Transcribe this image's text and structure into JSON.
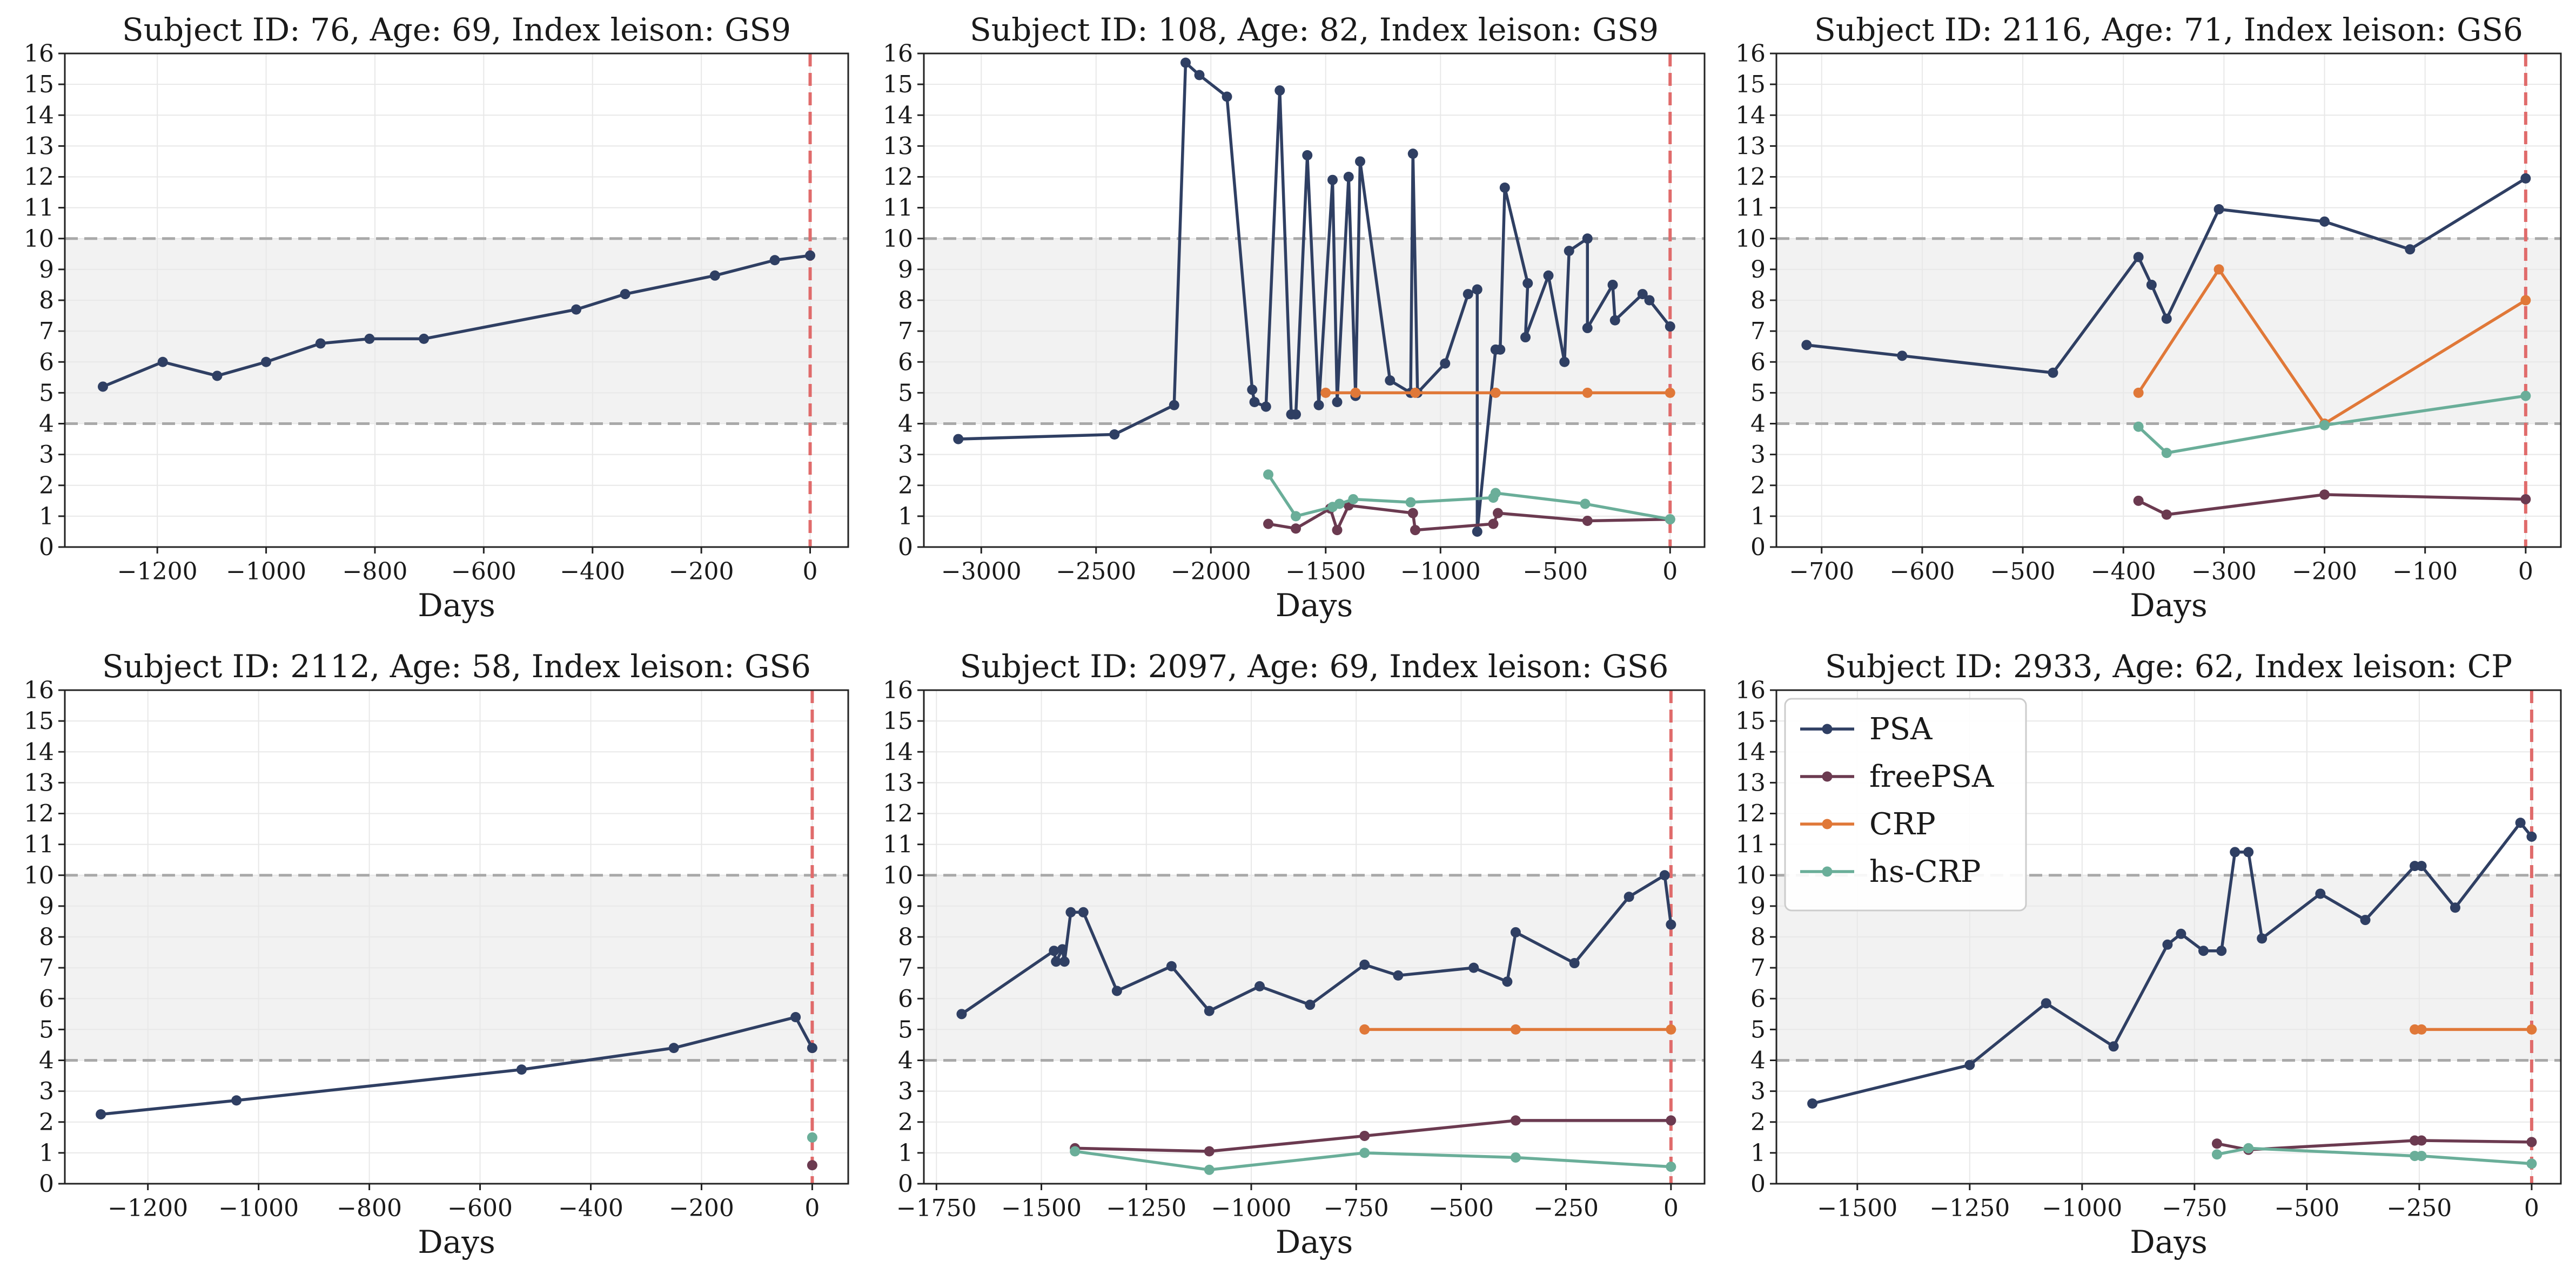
{
  "colors": {
    "PSA": "#2f3f63",
    "freePSA": "#6b3a50",
    "CRP": "#e07838",
    "hs-CRP": "#6aae99",
    "band": "#f2f2f2",
    "threshold": "#a9a9a9",
    "index": "#e06b6b",
    "grid": "#e8e8e8"
  },
  "chart_data": [
    {
      "type": "line",
      "title": "Subject ID: 76, Age: 69, Index leison: GS9",
      "xlabel": "Days",
      "xlim": [
        -1370,
        70
      ],
      "ylim": [
        0,
        16
      ],
      "xticks": [
        -1200,
        -1000,
        -800,
        -600,
        -400,
        -200,
        0
      ],
      "yticks": [
        0,
        1,
        2,
        3,
        4,
        5,
        6,
        7,
        8,
        9,
        10,
        11,
        12,
        13,
        14,
        15,
        16
      ],
      "band": [
        4,
        10
      ],
      "index_day": 0,
      "grid": true,
      "series": [
        {
          "name": "PSA",
          "points": [
            [
              -1300,
              5.2
            ],
            [
              -1190,
              6.0
            ],
            [
              -1090,
              5.55
            ],
            [
              -1000,
              6.0
            ],
            [
              -900,
              6.6
            ],
            [
              -810,
              6.75
            ],
            [
              -710,
              6.75
            ],
            [
              -430,
              7.7
            ],
            [
              -340,
              8.2
            ],
            [
              -175,
              8.8
            ],
            [
              -65,
              9.3
            ],
            [
              0,
              9.45
            ]
          ]
        }
      ]
    },
    {
      "type": "line",
      "title": "Subject ID: 108, Age: 82, Index leison: GS9",
      "xlabel": "Days",
      "xlim": [
        -3250,
        150
      ],
      "ylim": [
        0,
        16
      ],
      "xticks": [
        -3000,
        -2500,
        -2000,
        -1500,
        -1000,
        -500,
        0
      ],
      "yticks": [
        0,
        1,
        2,
        3,
        4,
        5,
        6,
        7,
        8,
        9,
        10,
        11,
        12,
        13,
        14,
        15,
        16
      ],
      "band": [
        4,
        10
      ],
      "index_day": 0,
      "grid": true,
      "series": [
        {
          "name": "PSA",
          "points": [
            [
              -3100,
              3.5
            ],
            [
              -2420,
              3.65
            ],
            [
              -2160,
              4.6
            ],
            [
              -2110,
              15.7
            ],
            [
              -2050,
              15.3
            ],
            [
              -1930,
              14.6
            ],
            [
              -1820,
              5.1
            ],
            [
              -1810,
              4.7
            ],
            [
              -1760,
              4.55
            ],
            [
              -1700,
              14.8
            ],
            [
              -1650,
              4.3
            ],
            [
              -1630,
              4.3
            ],
            [
              -1580,
              12.7
            ],
            [
              -1530,
              4.6
            ],
            [
              -1470,
              11.9
            ],
            [
              -1450,
              4.7
            ],
            [
              -1400,
              12.0
            ],
            [
              -1370,
              4.9
            ],
            [
              -1350,
              12.5
            ],
            [
              -1220,
              5.4
            ],
            [
              -1130,
              5.0
            ],
            [
              -1120,
              12.75
            ],
            [
              -1100,
              5.0
            ],
            [
              -980,
              5.95
            ],
            [
              -880,
              8.2
            ],
            [
              -840,
              8.35
            ],
            [
              -840,
              0.5
            ],
            [
              -760,
              6.4
            ],
            [
              -740,
              6.4
            ],
            [
              -720,
              11.65
            ],
            [
              -620,
              8.55
            ],
            [
              -630,
              6.8
            ],
            [
              -530,
              8.8
            ],
            [
              -460,
              6.0
            ],
            [
              -440,
              9.6
            ],
            [
              -360,
              10.0
            ],
            [
              -360,
              7.1
            ],
            [
              -250,
              8.5
            ],
            [
              -240,
              7.35
            ],
            [
              -120,
              8.2
            ],
            [
              -90,
              8.0
            ],
            [
              0,
              7.15
            ]
          ]
        },
        {
          "name": "freePSA",
          "points": [
            [
              -1750,
              0.75
            ],
            [
              -1630,
              0.6
            ],
            [
              -1480,
              1.25
            ],
            [
              -1450,
              0.55
            ],
            [
              -1400,
              1.35
            ],
            [
              -1120,
              1.1
            ],
            [
              -1110,
              0.55
            ],
            [
              -770,
              0.75
            ],
            [
              -750,
              1.1
            ],
            [
              -360,
              0.85
            ],
            [
              0,
              0.9
            ]
          ]
        },
        {
          "name": "CRP",
          "points": [
            [
              -1500,
              5.0
            ],
            [
              -1370,
              5.0
            ],
            [
              -1110,
              5.0
            ],
            [
              -760,
              5.0
            ],
            [
              -360,
              5.0
            ],
            [
              0,
              5.0
            ]
          ]
        },
        {
          "name": "hs-CRP",
          "points": [
            [
              -1750,
              2.35
            ],
            [
              -1630,
              1.0
            ],
            [
              -1470,
              1.3
            ],
            [
              -1440,
              1.4
            ],
            [
              -1380,
              1.55
            ],
            [
              -1130,
              1.45
            ],
            [
              -770,
              1.6
            ],
            [
              -760,
              1.75
            ],
            [
              -370,
              1.4
            ],
            [
              0,
              0.9
            ]
          ]
        }
      ]
    },
    {
      "type": "line",
      "title": "Subject ID: 2116, Age: 71, Index leison: GS6",
      "xlabel": "Days",
      "xlim": [
        -745,
        35
      ],
      "ylim": [
        0,
        16
      ],
      "xticks": [
        -700,
        -600,
        -500,
        -400,
        -300,
        -200,
        -100,
        0
      ],
      "yticks": [
        0,
        1,
        2,
        3,
        4,
        5,
        6,
        7,
        8,
        9,
        10,
        11,
        12,
        13,
        14,
        15,
        16
      ],
      "band": [
        4,
        10
      ],
      "index_day": 0,
      "grid": true,
      "series": [
        {
          "name": "PSA",
          "points": [
            [
              -715,
              6.55
            ],
            [
              -620,
              6.2
            ],
            [
              -470,
              5.65
            ],
            [
              -385,
              9.4
            ],
            [
              -372,
              8.5
            ],
            [
              -357,
              7.4
            ],
            [
              -305,
              10.95
            ],
            [
              -200,
              10.55
            ],
            [
              -115,
              9.65
            ],
            [
              0,
              11.95
            ]
          ]
        },
        {
          "name": "freePSA",
          "points": [
            [
              -385,
              1.5
            ],
            [
              -357,
              1.05
            ],
            [
              -200,
              1.7
            ],
            [
              0,
              1.55
            ]
          ]
        },
        {
          "name": "CRP",
          "points": [
            [
              -385,
              5.0
            ],
            [
              -305,
              9.0
            ],
            [
              -200,
              4.0
            ],
            [
              0,
              8.0
            ]
          ]
        },
        {
          "name": "hs-CRP",
          "points": [
            [
              -385,
              3.9
            ],
            [
              -357,
              3.05
            ],
            [
              -200,
              3.95
            ],
            [
              0,
              4.9
            ]
          ]
        }
      ]
    },
    {
      "type": "line",
      "title": "Subject ID: 2112, Age: 58, Index leison: GS6",
      "xlabel": "Days",
      "xlim": [
        -1350,
        65
      ],
      "ylim": [
        0,
        16
      ],
      "xticks": [
        -1200,
        -1000,
        -800,
        -600,
        -400,
        -200,
        0
      ],
      "yticks": [
        0,
        1,
        2,
        3,
        4,
        5,
        6,
        7,
        8,
        9,
        10,
        11,
        12,
        13,
        14,
        15,
        16
      ],
      "band": [
        4,
        10
      ],
      "index_day": 0,
      "grid": true,
      "series": [
        {
          "name": "PSA",
          "points": [
            [
              -1285,
              2.25
            ],
            [
              -1040,
              2.7
            ],
            [
              -525,
              3.7
            ],
            [
              -250,
              4.4
            ],
            [
              -30,
              5.4
            ],
            [
              0,
              4.4
            ]
          ]
        },
        {
          "name": "freePSA",
          "points": [
            [
              0,
              0.6
            ]
          ]
        },
        {
          "name": "hs-CRP",
          "points": [
            [
              0,
              1.5
            ]
          ]
        }
      ]
    },
    {
      "type": "line",
      "title": "Subject ID: 2097, Age: 69, Index leison: GS6",
      "xlabel": "Days",
      "xlim": [
        -1780,
        80
      ],
      "ylim": [
        0,
        16
      ],
      "xticks": [
        -1750,
        -1500,
        -1250,
        -1000,
        -750,
        -500,
        -250,
        0
      ],
      "yticks": [
        0,
        1,
        2,
        3,
        4,
        5,
        6,
        7,
        8,
        9,
        10,
        11,
        12,
        13,
        14,
        15,
        16
      ],
      "band": [
        4,
        10
      ],
      "index_day": 0,
      "grid": true,
      "series": [
        {
          "name": "PSA",
          "points": [
            [
              -1690,
              5.5
            ],
            [
              -1470,
              7.55
            ],
            [
              -1465,
              7.2
            ],
            [
              -1450,
              7.6
            ],
            [
              -1445,
              7.2
            ],
            [
              -1430,
              8.8
            ],
            [
              -1400,
              8.8
            ],
            [
              -1320,
              6.25
            ],
            [
              -1190,
              7.05
            ],
            [
              -1100,
              5.6
            ],
            [
              -980,
              6.4
            ],
            [
              -860,
              5.8
            ],
            [
              -730,
              7.1
            ],
            [
              -650,
              6.75
            ],
            [
              -470,
              7.0
            ],
            [
              -390,
              6.55
            ],
            [
              -370,
              8.15
            ],
            [
              -230,
              7.15
            ],
            [
              -100,
              9.3
            ],
            [
              -15,
              10.0
            ],
            [
              0,
              8.4
            ]
          ]
        },
        {
          "name": "freePSA",
          "points": [
            [
              -1420,
              1.15
            ],
            [
              -1100,
              1.05
            ],
            [
              -730,
              1.55
            ],
            [
              -370,
              2.05
            ],
            [
              0,
              2.05
            ]
          ]
        },
        {
          "name": "CRP",
          "points": [
            [
              -730,
              5.0
            ],
            [
              -370,
              5.0
            ],
            [
              0,
              5.0
            ]
          ]
        },
        {
          "name": "hs-CRP",
          "points": [
            [
              -1420,
              1.05
            ],
            [
              -1100,
              0.45
            ],
            [
              -730,
              1.0
            ],
            [
              -370,
              0.85
            ],
            [
              0,
              0.55
            ]
          ]
        }
      ]
    },
    {
      "type": "line",
      "title": "Subject ID: 2933, Age: 62, Index leison: CP",
      "xlabel": "Days",
      "xlim": [
        -1680,
        65
      ],
      "ylim": [
        0,
        16
      ],
      "xticks": [
        -1500,
        -1250,
        -1000,
        -750,
        -500,
        -250,
        0
      ],
      "yticks": [
        0,
        1,
        2,
        3,
        4,
        5,
        6,
        7,
        8,
        9,
        10,
        11,
        12,
        13,
        14,
        15,
        16
      ],
      "band": [
        4,
        10
      ],
      "index_day": 0,
      "grid": true,
      "legend": {
        "placement": "upper-left",
        "entries": [
          "PSA",
          "freePSA",
          "CRP",
          "hs-CRP"
        ]
      },
      "series": [
        {
          "name": "PSA",
          "points": [
            [
              -1600,
              2.6
            ],
            [
              -1250,
              3.85
            ],
            [
              -1080,
              5.85
            ],
            [
              -930,
              4.45
            ],
            [
              -810,
              7.75
            ],
            [
              -780,
              8.1
            ],
            [
              -730,
              7.55
            ],
            [
              -690,
              7.55
            ],
            [
              -660,
              10.75
            ],
            [
              -630,
              10.75
            ],
            [
              -600,
              7.95
            ],
            [
              -470,
              9.4
            ],
            [
              -370,
              8.55
            ],
            [
              -260,
              10.3
            ],
            [
              -245,
              10.3
            ],
            [
              -170,
              8.95
            ],
            [
              -25,
              11.7
            ],
            [
              0,
              11.25
            ]
          ]
        },
        {
          "name": "freePSA",
          "points": [
            [
              -700,
              1.3
            ],
            [
              -630,
              1.1
            ],
            [
              -260,
              1.4
            ],
            [
              -245,
              1.4
            ],
            [
              0,
              1.35
            ]
          ]
        },
        {
          "name": "CRP",
          "points": [
            [
              -260,
              5.0
            ],
            [
              -245,
              5.0
            ],
            [
              0,
              5.0
            ]
          ]
        },
        {
          "name": "hs-CRP",
          "points": [
            [
              -700,
              0.95
            ],
            [
              -630,
              1.15
            ],
            [
              -260,
              0.9
            ],
            [
              -245,
              0.9
            ],
            [
              0,
              0.65
            ]
          ]
        }
      ]
    }
  ]
}
